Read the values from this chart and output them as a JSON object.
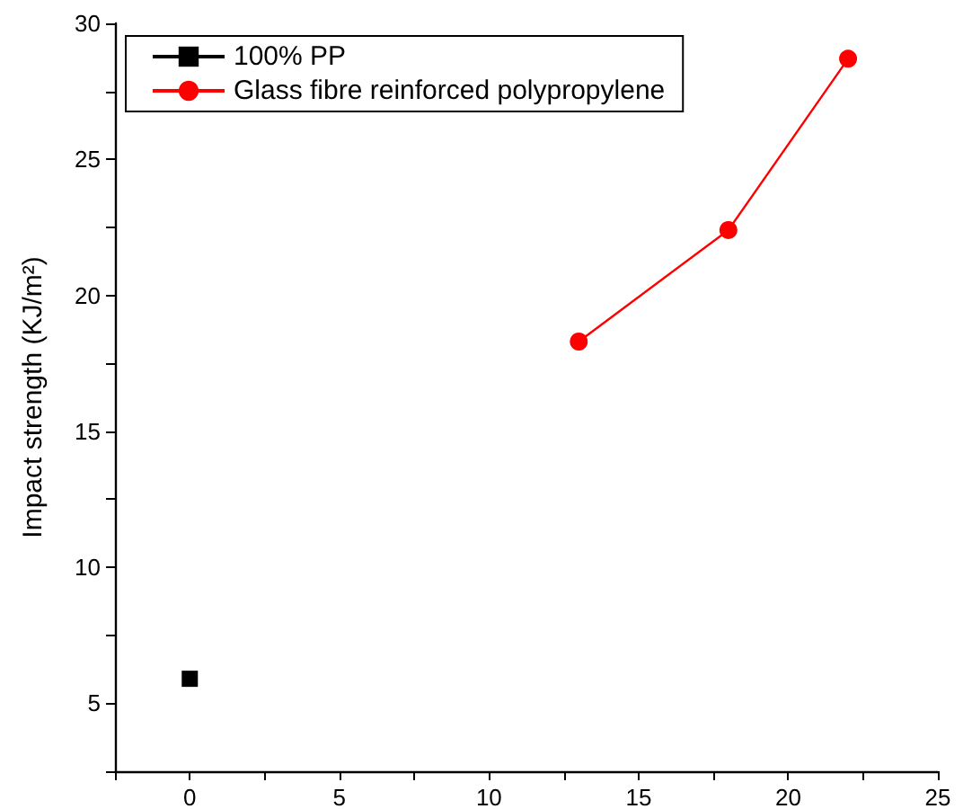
{
  "chart_data": {
    "type": "line",
    "ylabel": "Impact strength (KJ/m²)",
    "xlim": [
      -2.5,
      25
    ],
    "ylim": [
      2.5,
      30
    ],
    "xticks": [
      {
        "value": -2.5,
        "label": null
      },
      0,
      {
        "value": 2.5,
        "label": null
      },
      5,
      {
        "value": 7.5,
        "label": null
      },
      10,
      {
        "value": 12.5,
        "label": null
      },
      15,
      {
        "value": 17.5,
        "label": null
      },
      20,
      {
        "value": 22.5,
        "label": null
      },
      25
    ],
    "yticks": [
      {
        "value": 2.5,
        "label": null
      },
      5,
      {
        "value": 7.5,
        "label": null
      },
      10,
      {
        "value": 12.5,
        "label": null
      },
      15,
      {
        "value": 17.5,
        "label": null
      },
      20,
      {
        "value": 22.5,
        "label": null
      },
      25,
      {
        "value": 27.5,
        "label": null
      },
      30
    ],
    "series": [
      {
        "name": "100% PP",
        "color": "#000000",
        "marker": "square",
        "x": [
          0
        ],
        "values": [
          5.9
        ]
      },
      {
        "name": "Glass fibre reinforced polypropylene",
        "color": "#ff0000",
        "marker": "circle",
        "x": [
          13,
          18,
          22
        ],
        "values": [
          18.3,
          22.4,
          28.7
        ]
      }
    ],
    "legend": "top left",
    "grid": false,
    "line_style": "solid"
  }
}
